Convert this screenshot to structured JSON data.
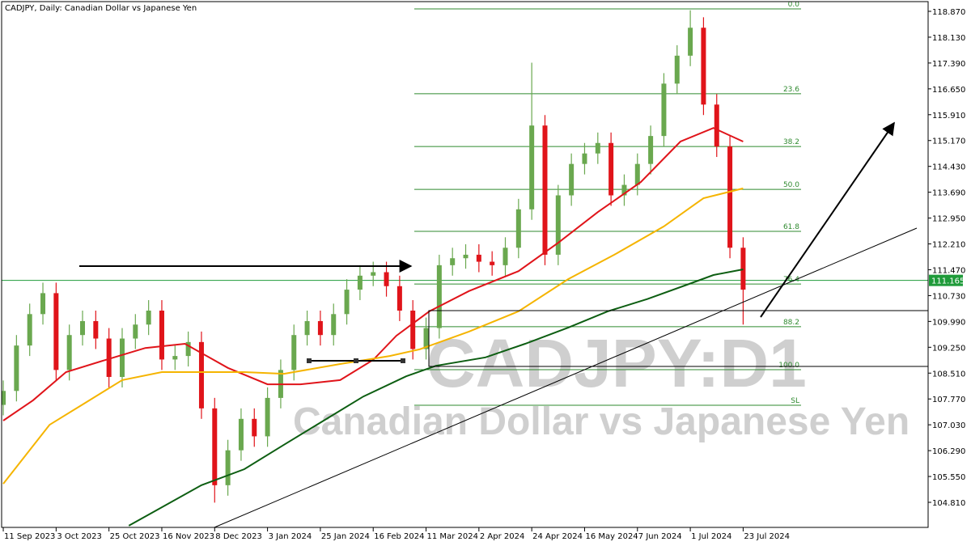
{
  "chart_data": {
    "type": "candlestick",
    "title": "CADJPY, Daily:  Canadian Dollar vs Japanese Yen",
    "watermark": "CADJPY:D1",
    "watermark_subtitle": "Canadian Dollar vs Japanese Yen",
    "up_color": "#6aa84f",
    "down_color": "#e0141a",
    "x": [
      0,
      4,
      8,
      12,
      16,
      20,
      24,
      28,
      32,
      36,
      40,
      44,
      48,
      52,
      56,
      60,
      64,
      68,
      72,
      76,
      80,
      84,
      88,
      92,
      96,
      100,
      104,
      108,
      112,
      116,
      120,
      124,
      128,
      132,
      136,
      140,
      144,
      148,
      152,
      156,
      160,
      164,
      168,
      172,
      176,
      180,
      184,
      188,
      192,
      196,
      200,
      204,
      208,
      212,
      216,
      220,
      224
    ],
    "open": [
      107.6,
      108.0,
      109.3,
      110.2,
      110.8,
      108.6,
      109.6,
      110.0,
      109.5,
      108.4,
      109.5,
      109.9,
      110.3,
      108.9,
      109.0,
      109.4,
      107.5,
      105.3,
      106.3,
      107.2,
      106.7,
      107.8,
      108.6,
      109.6,
      110.0,
      109.6,
      110.2,
      110.9,
      111.3,
      111.4,
      111.0,
      110.3,
      109.2,
      109.8,
      111.6,
      111.8,
      111.9,
      111.7,
      111.6,
      112.1,
      113.2,
      115.6,
      111.9,
      113.6,
      114.5,
      114.8,
      115.1,
      113.6,
      113.9,
      114.5,
      115.3,
      116.8,
      117.6,
      118.4,
      116.2,
      115.0,
      112.1
    ],
    "high": [
      108.3,
      109.6,
      110.5,
      111.1,
      111.1,
      109.9,
      110.3,
      110.3,
      109.8,
      109.8,
      110.2,
      110.6,
      110.6,
      109.3,
      109.7,
      109.7,
      107.8,
      106.6,
      107.5,
      107.5,
      108.1,
      108.9,
      109.9,
      110.3,
      110.3,
      110.5,
      111.2,
      111.6,
      111.7,
      111.7,
      111.3,
      110.6,
      110.1,
      111.9,
      112.1,
      112.2,
      112.2,
      112.0,
      112.4,
      113.5,
      117.4,
      115.9,
      113.9,
      114.8,
      115.1,
      115.4,
      115.4,
      114.2,
      114.8,
      115.6,
      117.1,
      117.9,
      118.9,
      118.7,
      116.5,
      115.3,
      112.4
    ],
    "low": [
      107.3,
      107.7,
      109.0,
      109.9,
      108.3,
      108.3,
      109.3,
      109.2,
      108.1,
      108.1,
      109.2,
      109.6,
      108.6,
      108.6,
      108.7,
      107.2,
      104.8,
      105.0,
      106.0,
      106.4,
      106.4,
      107.5,
      108.3,
      109.3,
      109.3,
      109.3,
      109.9,
      110.6,
      111.0,
      110.7,
      110.0,
      108.9,
      108.9,
      109.5,
      111.3,
      111.5,
      111.4,
      111.3,
      111.3,
      111.8,
      112.9,
      111.6,
      111.6,
      113.3,
      114.2,
      114.5,
      113.3,
      113.3,
      113.6,
      114.2,
      115.0,
      116.5,
      117.3,
      115.9,
      114.7,
      111.8,
      109.9
    ],
    "close": [
      108.0,
      109.3,
      110.2,
      110.8,
      108.6,
      109.6,
      110.0,
      109.5,
      108.4,
      109.5,
      109.9,
      110.3,
      108.9,
      109.0,
      109.4,
      107.5,
      105.3,
      106.3,
      107.2,
      106.7,
      107.8,
      108.6,
      109.6,
      110.0,
      109.6,
      110.2,
      110.9,
      111.3,
      111.4,
      111.0,
      110.3,
      109.2,
      109.8,
      111.6,
      111.8,
      111.9,
      111.7,
      111.6,
      112.1,
      113.2,
      115.6,
      111.9,
      113.6,
      114.5,
      114.8,
      115.1,
      113.6,
      113.9,
      114.5,
      115.3,
      116.8,
      117.6,
      118.4,
      116.2,
      115.0,
      112.1,
      110.9
    ],
    "moving_averages": [
      {
        "color": "#e0141a",
        "x": [
          0,
          9,
          19,
          31,
          43,
          55,
          68,
          80,
          90,
          102,
          112,
          119,
          129,
          141,
          156,
          168,
          180,
          193,
          205,
          215,
          224
        ],
        "values": [
          107.15,
          107.73,
          108.54,
          108.89,
          109.23,
          109.35,
          108.66,
          108.19,
          108.19,
          108.31,
          108.89,
          109.58,
          110.28,
          110.86,
          111.43,
          112.24,
          113.12,
          113.98,
          115.14,
          115.53,
          115.14
        ]
      },
      {
        "color": "#f5b400",
        "x": [
          0,
          14,
          24,
          36,
          48,
          60,
          73,
          85,
          102,
          117,
          126,
          141,
          156,
          171,
          185,
          200,
          212,
          224
        ],
        "values": [
          105.34,
          107.03,
          107.61,
          108.31,
          108.54,
          108.54,
          108.54,
          108.49,
          108.77,
          109.0,
          109.19,
          109.7,
          110.28,
          111.2,
          111.9,
          112.71,
          113.52,
          113.8
        ]
      },
      {
        "color": "#0d5e12",
        "x": [
          38,
          60,
          73,
          85,
          97,
          109,
          122,
          131,
          146,
          158,
          171,
          183,
          195,
          207,
          215,
          224
        ],
        "values": [
          104.14,
          105.3,
          105.76,
          106.46,
          107.15,
          107.84,
          108.42,
          108.72,
          108.96,
          109.35,
          109.81,
          110.28,
          110.63,
          111.04,
          111.32,
          111.48
        ]
      }
    ],
    "fib_levels": [
      {
        "label": "0.0",
        "value": 118.94
      },
      {
        "label": "23.6",
        "value": 116.51
      },
      {
        "label": "38.2",
        "value": 115.0
      },
      {
        "label": "50.0",
        "value": 113.77
      },
      {
        "label": "61.8",
        "value": 112.57
      },
      {
        "label": "76.4",
        "value": 111.06
      },
      {
        "label": "88.2",
        "value": 109.84
      },
      {
        "label": "100.0",
        "value": 108.61
      },
      {
        "label": "SL",
        "value": 107.59
      }
    ],
    "fib_color": "#2f8a2f",
    "last_price": 111.165,
    "last_price_color": "#1f9b3a",
    "xlim": [
      -0.5,
      280
    ],
    "xticks": [
      {
        "value": 0,
        "label": "11 Sep 2023"
      },
      {
        "value": 16,
        "label": "3 Oct 2023"
      },
      {
        "value": 32,
        "label": "25 Oct 2023"
      },
      {
        "value": 48,
        "label": "16 Nov 2023"
      },
      {
        "value": 64,
        "label": "8 Dec 2023"
      },
      {
        "value": 80,
        "label": "3 Jan 2024"
      },
      {
        "value": 96,
        "label": "25 Jan 2024"
      },
      {
        "value": 112,
        "label": "16 Feb 2024"
      },
      {
        "value": 128,
        "label": "11 Mar 2024"
      },
      {
        "value": 144,
        "label": "2 Apr 2024"
      },
      {
        "value": 160,
        "label": "24 Apr 2024"
      },
      {
        "value": 176,
        "label": "16 May 2024"
      },
      {
        "value": 192,
        "label": "7 Jun 2024"
      },
      {
        "value": 208,
        "label": "1 Jul 2024"
      },
      {
        "value": 224,
        "label": "23 Jul 2024"
      }
    ],
    "ylim": [
      104.092,
      119.148
    ],
    "yticks": [
      {
        "value": 104.81,
        "label": "104.810"
      },
      {
        "value": 105.55,
        "label": "105.550"
      },
      {
        "value": 106.29,
        "label": "106.290"
      },
      {
        "value": 107.03,
        "label": "107.030"
      },
      {
        "value": 107.77,
        "label": "107.770"
      },
      {
        "value": 108.51,
        "label": "108.510"
      },
      {
        "value": 109.25,
        "label": "109.250"
      },
      {
        "value": 109.99,
        "label": "109.990"
      },
      {
        "value": 110.73,
        "label": "110.730"
      },
      {
        "value": 111.47,
        "label": "111.470"
      },
      {
        "value": 112.21,
        "label": "112.210"
      },
      {
        "value": 112.95,
        "label": "112.950"
      },
      {
        "value": 113.69,
        "label": "113.690"
      },
      {
        "value": 114.43,
        "label": "114.430"
      },
      {
        "value": 115.17,
        "label": "115.170"
      },
      {
        "value": 115.91,
        "label": "115.910"
      },
      {
        "value": 116.65,
        "label": "116.650"
      },
      {
        "value": 117.39,
        "label": "117.390"
      },
      {
        "value": 118.13,
        "label": "118.130"
      },
      {
        "value": 118.87,
        "label": "118.870"
      }
    ]
  }
}
